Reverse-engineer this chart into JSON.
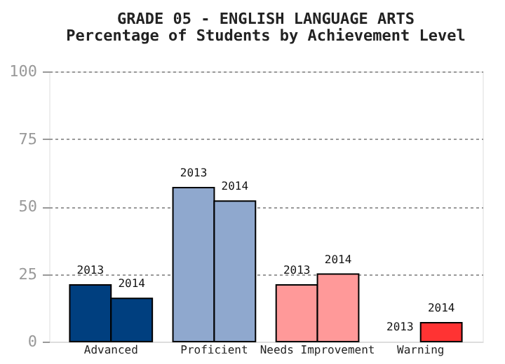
{
  "chart_data": {
    "type": "bar",
    "title": "GRADE 05 - ENGLISH LANGUAGE ARTS",
    "subtitle": "Percentage of Students by Achievement Level",
    "categories": [
      "Advanced",
      "Proficient",
      "Needs Improvement",
      "Warning"
    ],
    "series": [
      {
        "name": "2013",
        "colors": [
          "#003f7f",
          "#8fa8ce",
          "#ff9999",
          "#ff3333"
        ],
        "values": [
          21,
          57,
          21,
          0
        ]
      },
      {
        "name": "2014",
        "colors": [
          "#003f7f",
          "#8fa8ce",
          "#ff9999",
          "#ff3333"
        ],
        "values": [
          16,
          52,
          25,
          7
        ]
      }
    ],
    "ylim": [
      0,
      100
    ],
    "yticks": [
      0,
      25,
      50,
      75,
      100
    ],
    "grid": "y"
  }
}
